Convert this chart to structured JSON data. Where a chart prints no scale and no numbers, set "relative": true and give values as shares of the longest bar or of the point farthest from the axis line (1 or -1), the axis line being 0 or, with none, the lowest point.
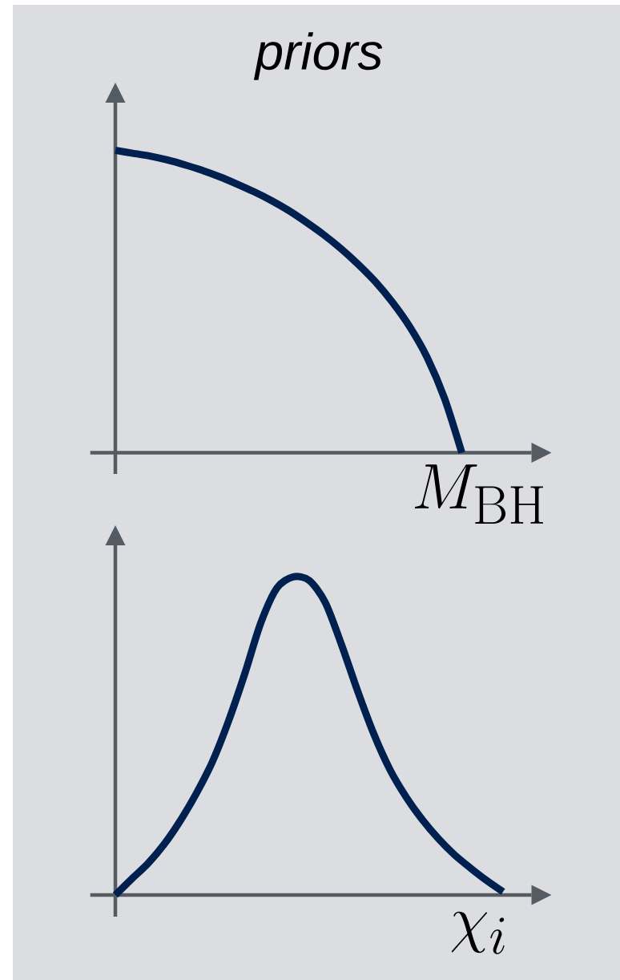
{
  "chart_data": [
    {
      "type": "line",
      "title": "priors",
      "xlabel": "M_{\\mathrm{BH}}",
      "relative": true,
      "color": "#00214f",
      "categories": [
        null,
        null,
        null,
        null,
        null,
        null,
        null,
        null,
        null,
        null,
        null,
        null,
        null,
        null,
        null,
        null,
        null,
        null,
        null,
        null,
        null
      ],
      "values": [
        1,
        0.99,
        0.981,
        0.968,
        0.952,
        0.934,
        0.913,
        0.889,
        0.863,
        0.834,
        0.801,
        0.763,
        0.722,
        0.676,
        0.624,
        0.566,
        0.497,
        0.416,
        0.315,
        0.18,
        0
      ]
    },
    {
      "type": "line",
      "xlabel": "\\chi_i",
      "relative": true,
      "color": "#00214f",
      "categories": [
        null,
        null,
        null,
        null,
        null,
        null,
        null,
        null,
        null,
        null,
        null,
        null,
        null,
        null,
        null,
        null,
        null,
        null,
        null,
        null,
        null,
        null,
        null,
        null,
        null
      ],
      "values": [
        0,
        0.05,
        0.098,
        0.158,
        0.232,
        0.318,
        0.418,
        0.546,
        0.694,
        0.855,
        0.965,
        1,
        0.989,
        0.919,
        0.787,
        0.641,
        0.506,
        0.394,
        0.308,
        0.237,
        0.177,
        0.126,
        0.084,
        0.045,
        0.01
      ]
    }
  ]
}
